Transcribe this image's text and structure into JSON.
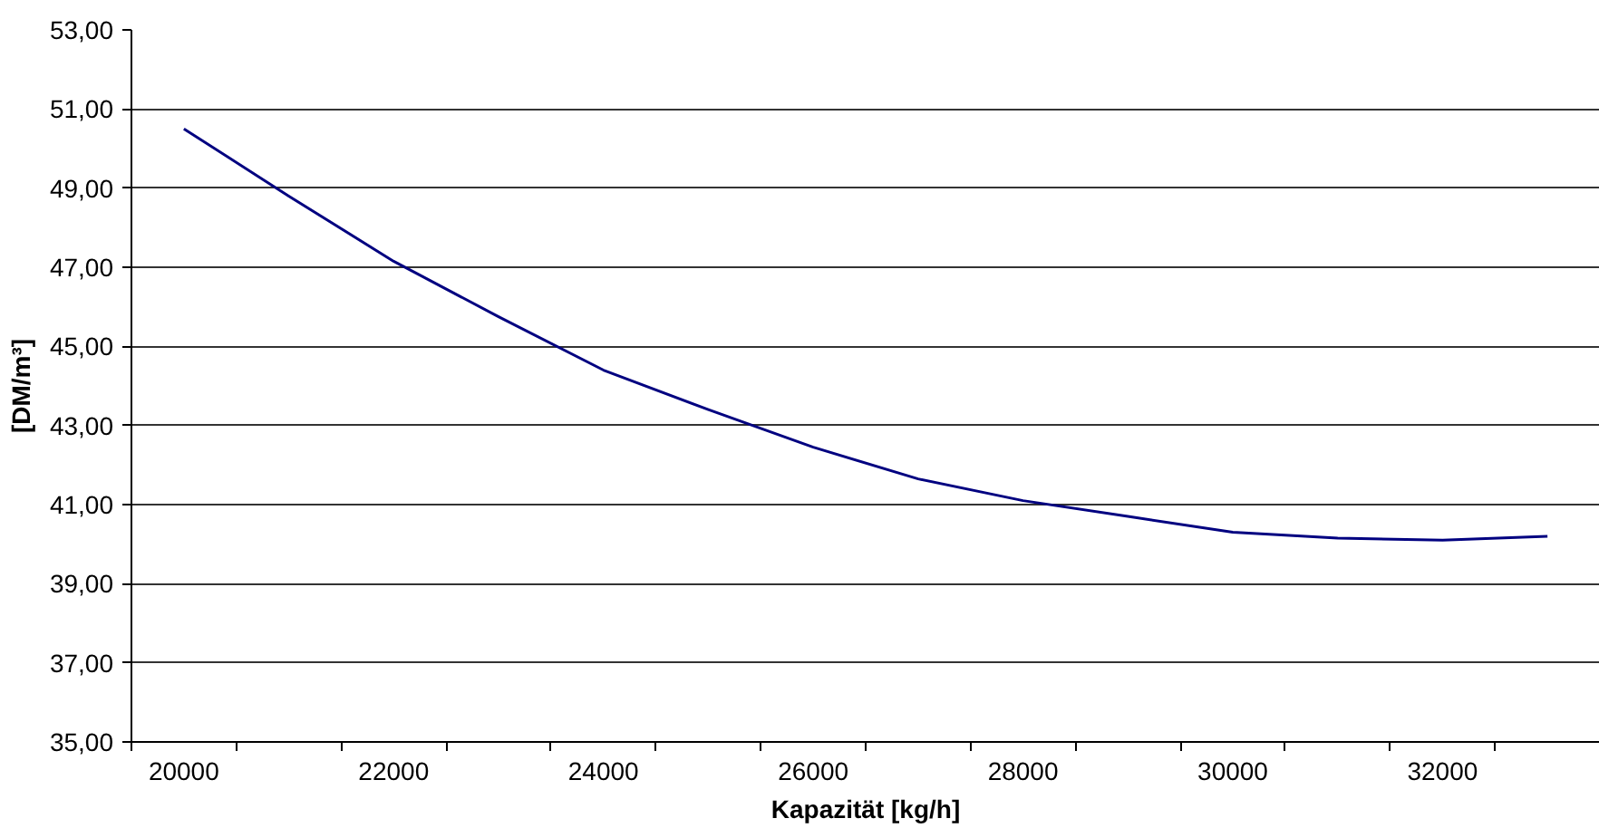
{
  "chart_data": {
    "type": "line",
    "xlabel": "Kapazität [kg/h]",
    "ylabel": "[DM/m³]",
    "categories": [
      "20000",
      null,
      "22000",
      null,
      "24000",
      null,
      "26000",
      null,
      "28000",
      null,
      "30000",
      null,
      "32000",
      null
    ],
    "series": [
      {
        "color": "#000080",
        "values": [
          50.5,
          48.8,
          47.15,
          45.75,
          44.4,
          43.4,
          42.45,
          41.65,
          41.1,
          40.7,
          40.3,
          40.15,
          40.1,
          40.2
        ]
      }
    ],
    "ylim": [
      35,
      53
    ],
    "yticks": [
      {
        "value": 35,
        "label": "35,00"
      },
      {
        "value": 37,
        "label": "37,00"
      },
      {
        "value": 39,
        "label": "39,00"
      },
      {
        "value": 41,
        "label": "41,00"
      },
      {
        "value": 43,
        "label": "43,00"
      },
      {
        "value": 45,
        "label": "45,00"
      },
      {
        "value": 47,
        "label": "47,00"
      },
      {
        "value": 49,
        "label": "49,00"
      },
      {
        "value": 51,
        "label": "51,00"
      },
      {
        "value": 53,
        "label": "53,00"
      }
    ],
    "grid": "y"
  }
}
